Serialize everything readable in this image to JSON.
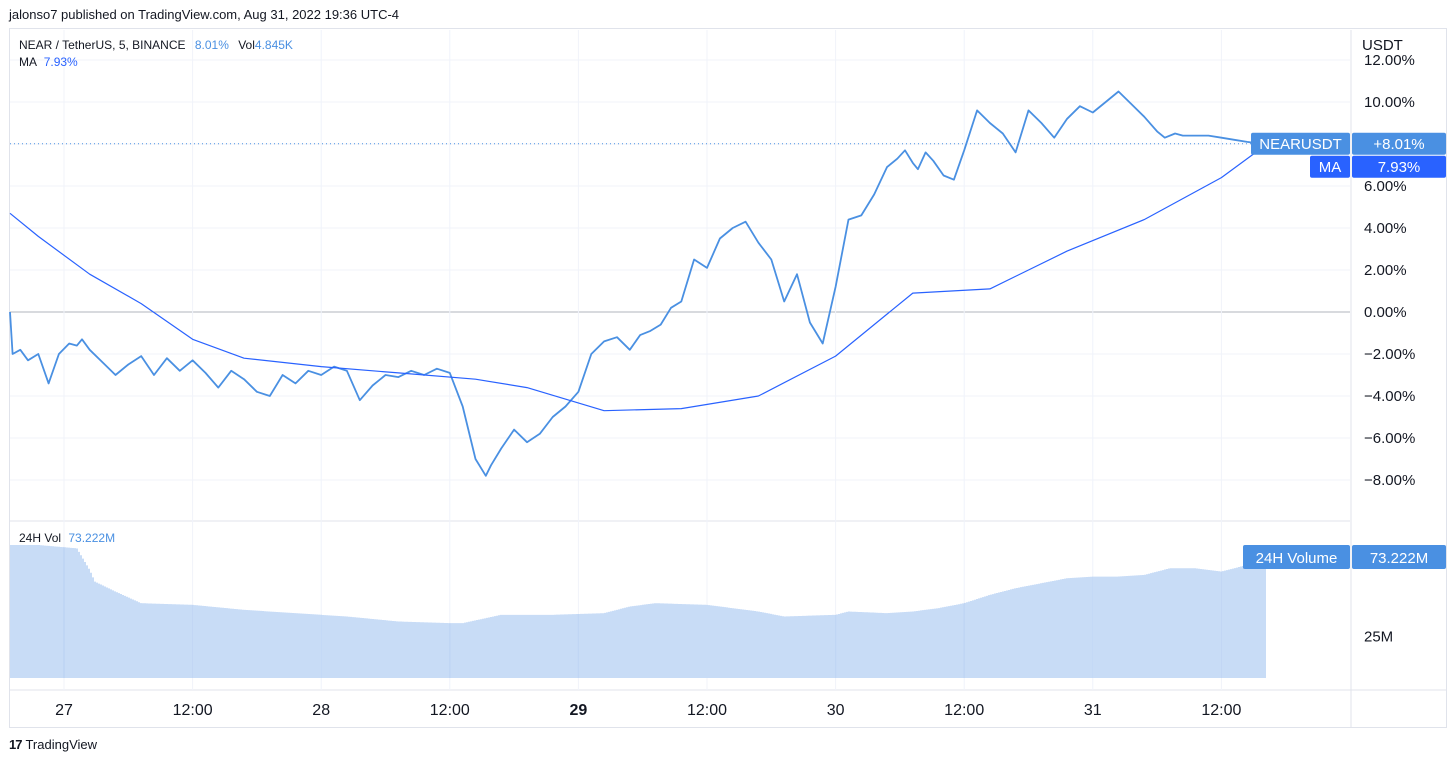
{
  "header": {
    "published_text": "jalonso7 published on TradingView.com, Aug 31, 2022 19:36 UTC-4"
  },
  "legend": {
    "symbol": "NEAR / TetherUS, 5, BINANCE",
    "change": "8.01%",
    "vol_label": "Vol",
    "vol_value": "4.845K",
    "ma_label": "MA",
    "ma_value": "7.93%"
  },
  "volume_legend": {
    "label": "24H Vol",
    "value": "73.222M"
  },
  "footer": {
    "brand_mark": "17",
    "brand": "TradingView"
  },
  "colors": {
    "price_line": "#4a90e2",
    "ma_line": "#2962ff",
    "volume_bar": "#90b8ee",
    "grid": "#f0f3fa",
    "zero_line": "#b2b5be",
    "axis_text": "#131722"
  },
  "chart_data": {
    "type": "line",
    "y_axis_unit": "USDT",
    "y_ticks": [
      "12.00%",
      "10.00%",
      "8.00%",
      "6.00%",
      "4.00%",
      "2.00%",
      "0.00%",
      "−2.00%",
      "−4.00%",
      "−6.00%",
      "−8.00%"
    ],
    "y_tick_values": [
      12,
      10,
      8,
      6,
      4,
      2,
      0,
      -2,
      -4,
      -6,
      -8
    ],
    "ylim": [
      -9,
      12.5
    ],
    "x_ticks": [
      "27",
      "12:00",
      "28",
      "12:00",
      "29",
      "12:00",
      "30",
      "12:00",
      "31",
      "12:00"
    ],
    "x_tick_bold": [
      false,
      false,
      false,
      false,
      true,
      false,
      false,
      false,
      false,
      false
    ],
    "x_tick_positions_days": [
      0.5,
      1,
      1.5,
      2,
      2.5,
      3,
      3.5,
      4,
      4.5,
      5
    ],
    "xlim_days": [
      0.29,
      5.5
    ],
    "series": [
      {
        "name": "NEARUSDT",
        "x": [
          0.29,
          0.3,
          0.33,
          0.36,
          0.4,
          0.44,
          0.48,
          0.52,
          0.55,
          0.57,
          0.6,
          0.65,
          0.7,
          0.75,
          0.8,
          0.85,
          0.9,
          0.95,
          1.0,
          1.05,
          1.1,
          1.15,
          1.2,
          1.25,
          1.3,
          1.35,
          1.4,
          1.45,
          1.5,
          1.55,
          1.6,
          1.65,
          1.7,
          1.75,
          1.8,
          1.85,
          1.9,
          1.95,
          2.0,
          2.05,
          2.1,
          2.14,
          2.16,
          2.2,
          2.25,
          2.3,
          2.35,
          2.4,
          2.45,
          2.5,
          2.55,
          2.6,
          2.65,
          2.7,
          2.74,
          2.78,
          2.82,
          2.86,
          2.9,
          2.95,
          3.0,
          3.05,
          3.1,
          3.15,
          3.2,
          3.25,
          3.3,
          3.35,
          3.4,
          3.45,
          3.5,
          3.55,
          3.6,
          3.65,
          3.7,
          3.74,
          3.77,
          3.8,
          3.82,
          3.85,
          3.88,
          3.92,
          3.96,
          4.0,
          4.05,
          4.1,
          4.15,
          4.2,
          4.25,
          4.3,
          4.35,
          4.4,
          4.45,
          4.5,
          4.55,
          4.6,
          4.65,
          4.7,
          4.75,
          4.78,
          4.82,
          4.85,
          4.9,
          4.95,
          5.0,
          5.05,
          5.1,
          5.13,
          5.15,
          5.17
        ],
        "y": [
          0,
          -2.0,
          -1.8,
          -2.3,
          -2.0,
          -3.4,
          -2.0,
          -1.5,
          -1.6,
          -1.3,
          -1.8,
          -2.4,
          -3.0,
          -2.5,
          -2.1,
          -3.0,
          -2.2,
          -2.8,
          -2.3,
          -2.9,
          -3.6,
          -2.8,
          -3.2,
          -3.8,
          -4.0,
          -3.0,
          -3.4,
          -2.8,
          -3.0,
          -2.6,
          -2.8,
          -4.2,
          -3.5,
          -3.0,
          -3.1,
          -2.8,
          -3.0,
          -2.7,
          -2.9,
          -4.5,
          -7.0,
          -7.8,
          -7.3,
          -6.5,
          -5.6,
          -6.2,
          -5.8,
          -5.0,
          -4.5,
          -3.8,
          -2.0,
          -1.4,
          -1.2,
          -1.8,
          -1.1,
          -0.9,
          -0.6,
          0.2,
          0.5,
          2.5,
          2.1,
          3.5,
          4.0,
          4.3,
          3.3,
          2.5,
          0.5,
          1.8,
          -0.5,
          -1.5,
          1.2,
          4.4,
          4.6,
          5.6,
          6.9,
          7.3,
          7.7,
          7.1,
          6.8,
          7.6,
          7.2,
          6.5,
          6.3,
          7.7,
          9.6,
          9.0,
          8.5,
          7.6,
          9.6,
          9.0,
          8.3,
          9.2,
          9.8,
          9.5,
          10.0,
          10.5,
          9.9,
          9.3,
          8.6,
          8.3,
          8.5,
          8.4,
          8.4,
          8.4,
          8.3,
          8.2,
          8.1,
          8.05,
          8.02,
          8.01
        ]
      },
      {
        "name": "MA",
        "x": [
          0.29,
          0.4,
          0.6,
          0.8,
          1.0,
          1.2,
          1.5,
          1.8,
          2.1,
          2.3,
          2.6,
          2.9,
          3.2,
          3.5,
          3.8,
          4.1,
          4.4,
          4.7,
          5.0,
          5.17
        ],
        "y": [
          4.7,
          3.6,
          1.8,
          0.4,
          -1.3,
          -2.2,
          -2.6,
          -2.9,
          -3.2,
          -3.6,
          -4.7,
          -4.6,
          -4.0,
          -2.1,
          0.9,
          1.1,
          2.9,
          4.4,
          6.4,
          7.93
        ]
      }
    ],
    "price_labels": [
      {
        "name": "NEARUSDT",
        "value_text": "+8.01%",
        "value": 8.01
      },
      {
        "name": "MA",
        "value_text": "7.93%",
        "value": 7.93
      }
    ],
    "volume": {
      "label": "24H Volume",
      "value_text": "73.222M",
      "tick_label": "25M",
      "tick_value": 25,
      "ylim": [
        0,
        80
      ],
      "x": [
        0.29,
        0.4,
        0.55,
        0.6,
        0.62,
        0.7,
        0.8,
        1.0,
        1.2,
        1.4,
        1.6,
        1.8,
        2.0,
        2.05,
        2.2,
        2.4,
        2.6,
        2.7,
        2.8,
        3.0,
        3.2,
        3.3,
        3.5,
        3.55,
        3.7,
        3.8,
        3.9,
        4.0,
        4.1,
        4.2,
        4.3,
        4.4,
        4.5,
        4.6,
        4.7,
        4.8,
        4.9,
        5.0,
        5.1,
        5.17
      ],
      "values": [
        80,
        80,
        78,
        65,
        58,
        52,
        45,
        44,
        41,
        39,
        37,
        34,
        33,
        33,
        38,
        38,
        39,
        43,
        45,
        44,
        40,
        37,
        38,
        40,
        39,
        40,
        42,
        45,
        50,
        54,
        57,
        60,
        61,
        61,
        62,
        66,
        66,
        64,
        68,
        73.2
      ]
    }
  }
}
